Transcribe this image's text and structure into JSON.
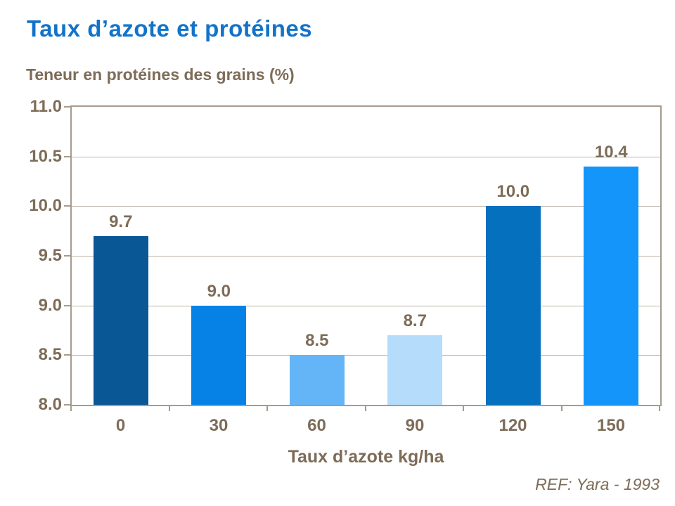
{
  "page": {
    "title": "Taux d’azote et protéines",
    "subtitle": "Teneur en protéines des grains (%)",
    "reference": "REF: Yara - 1993"
  },
  "colors": {
    "title_blue": "#1173C9",
    "text_brown": "#7D6C58",
    "axis_border": "#A69B8D",
    "gridline": "#BDB3A7"
  },
  "chart_data": {
    "type": "bar",
    "title": "Taux d’azote et protéines",
    "ylabel": "Teneur en protéines des grains (%)",
    "xlabel": "Taux d’azote kg/ha",
    "categories": [
      "0",
      "30",
      "60",
      "90",
      "120",
      "150"
    ],
    "values": [
      9.7,
      9.0,
      8.5,
      8.7,
      10.0,
      10.4
    ],
    "data_labels": [
      "9.7",
      "9.0",
      "8.5",
      "8.7",
      "10.0",
      "10.4"
    ],
    "bar_colors": [
      "#0A5796",
      "#0682E6",
      "#64B5F7",
      "#B5DDFB",
      "#0470BE",
      "#1495FA"
    ],
    "ylim": [
      8.0,
      11.0
    ],
    "ytick_step": 0.5,
    "ytick_labels": [
      "8.0",
      "8.5",
      "9.0",
      "9.5",
      "10.0",
      "10.5",
      "11.0"
    ],
    "grid": "horizontal",
    "legend": "none",
    "annotation": "REF: Yara - 1993"
  }
}
